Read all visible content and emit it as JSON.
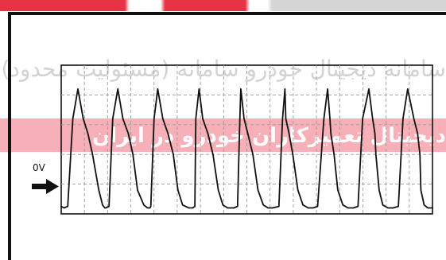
{
  "watermark": {
    "line1": "سامانه دیجیتال خودرو سامانه (مسئولیت محدود)",
    "line2": "دیجیتال تعمیرکاران خودرو در ایران"
  },
  "colors": {
    "trace": "#111111",
    "grid": "#9a9a9a",
    "frame": "#111111",
    "watermark_red": "#e6283c"
  },
  "chart_data": {
    "type": "line",
    "title": "",
    "xlabel": "",
    "ylabel": "",
    "reference_marker": {
      "label": "0V",
      "level": 0
    },
    "grid": true,
    "divisions": {
      "x": 16,
      "y": 5
    },
    "xlim": [
      0,
      16
    ],
    "ylim": [
      -0.2,
      4.8
    ],
    "series": [
      {
        "name": "",
        "x": [
          0.0,
          0.12,
          0.28,
          0.5,
          0.72,
          0.95,
          1.15,
          1.35,
          1.62,
          1.78,
          1.88,
          1.92,
          2.06,
          2.22,
          2.44,
          2.66,
          2.89,
          3.09,
          3.29,
          3.56,
          3.72,
          3.82,
          3.86,
          4.0,
          4.16,
          4.38,
          4.6,
          4.83,
          5.03,
          5.23,
          5.5,
          5.66,
          5.76,
          5.8,
          5.94,
          6.1,
          6.32,
          6.54,
          6.77,
          6.97,
          7.17,
          7.44,
          7.6,
          7.7,
          7.74,
          7.88,
          8.04,
          8.26,
          8.48,
          8.71,
          8.91,
          9.11,
          9.38,
          9.54,
          9.64,
          9.68,
          9.82,
          9.98,
          10.2,
          10.42,
          10.65,
          10.85,
          11.05,
          11.32,
          11.48,
          11.58,
          11.62,
          11.76,
          11.92,
          12.14,
          12.36,
          12.59,
          12.79,
          12.99,
          13.26,
          13.42,
          13.52,
          13.56,
          13.7,
          13.86,
          14.08,
          14.3,
          14.53,
          14.73,
          14.93,
          15.2,
          15.36,
          15.46,
          15.5,
          15.64,
          15.8,
          16.0
        ],
        "y": [
          0.05,
          0.0,
          0.05,
          3.0,
          4.0,
          3.0,
          2.5,
          1.8,
          0.6,
          0.1,
          0.0,
          0.0,
          0.05,
          3.0,
          4.0,
          3.0,
          2.5,
          1.8,
          0.6,
          0.1,
          0.0,
          0.0,
          0.05,
          3.0,
          4.0,
          3.0,
          2.5,
          1.8,
          0.6,
          0.1,
          0.0,
          0.0,
          0.05,
          3.0,
          4.0,
          3.0,
          2.5,
          1.8,
          0.6,
          0.1,
          0.0,
          0.0,
          0.05,
          3.0,
          4.0,
          3.0,
          2.5,
          1.8,
          0.6,
          0.1,
          0.0,
          0.0,
          0.05,
          3.0,
          4.0,
          3.0,
          2.5,
          1.8,
          0.6,
          0.1,
          0.0,
          0.0,
          0.05,
          3.0,
          4.0,
          3.0,
          2.5,
          1.8,
          0.6,
          0.1,
          0.0,
          0.0,
          0.05,
          3.0,
          4.0,
          3.0,
          2.5,
          1.8,
          0.6,
          0.1,
          0.0,
          0.0,
          0.05,
          3.0,
          4.0,
          3.0,
          2.5,
          1.8,
          0.6,
          0.1,
          0.0,
          0.0
        ]
      }
    ]
  }
}
